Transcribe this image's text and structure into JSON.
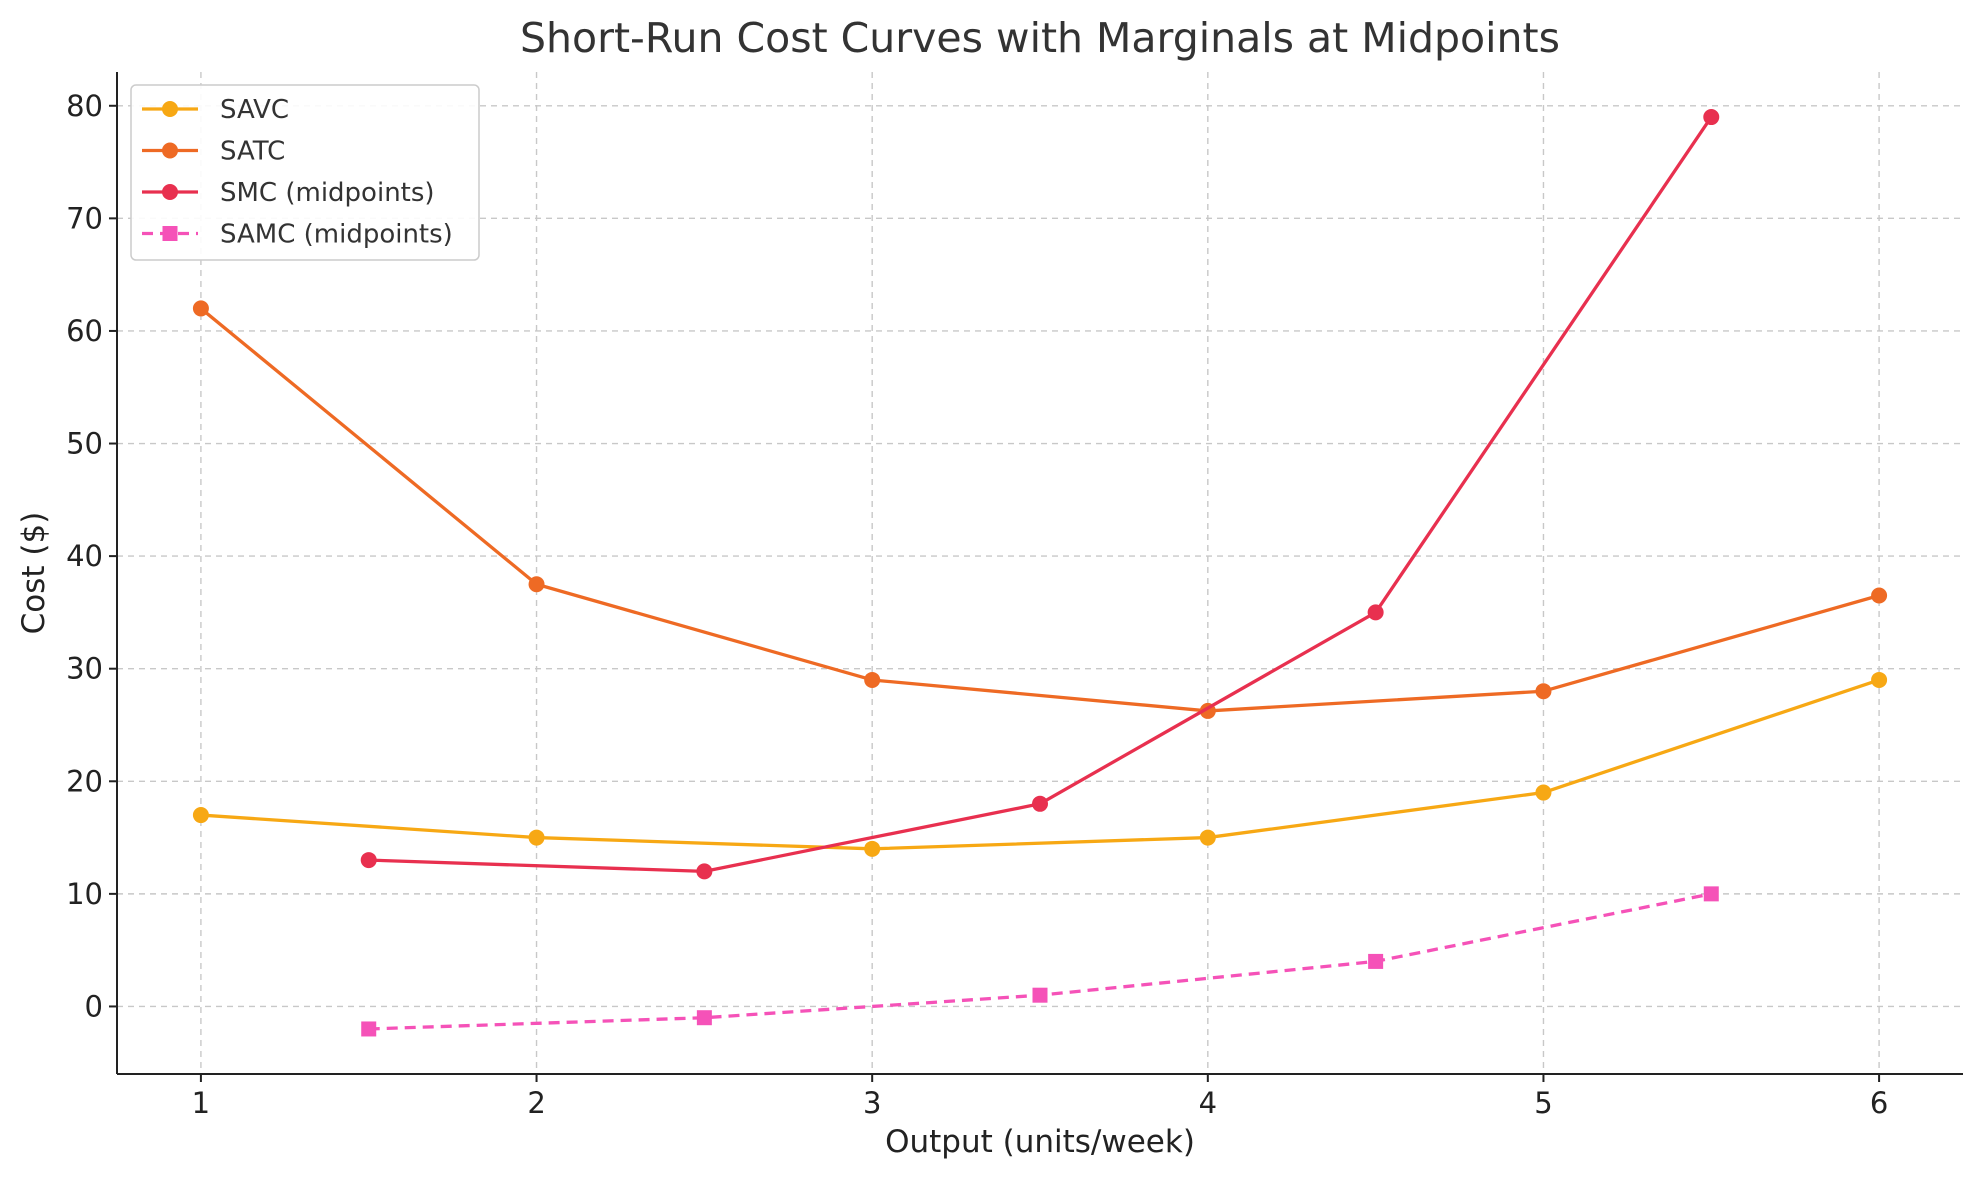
{
  "chart_data": {
    "type": "line",
    "title": "Short-Run Cost Curves with Marginals at Midpoints",
    "xlabel": "Output (units/week)",
    "ylabel": "Cost ($)",
    "xlim": [
      0.75,
      6.25
    ],
    "ylim": [
      -6,
      83
    ],
    "xticks": [
      1,
      2,
      3,
      4,
      5,
      6
    ],
    "yticks": [
      0,
      10,
      20,
      30,
      40,
      50,
      60,
      70,
      80
    ],
    "grid": true,
    "legend_position": "top-left",
    "series": [
      {
        "name": "SAVC",
        "color": "#F7A814",
        "marker": "circle",
        "dash": false,
        "x": [
          1,
          2,
          3,
          4,
          5,
          6
        ],
        "y": [
          17,
          15,
          14,
          15,
          19,
          29
        ]
      },
      {
        "name": "SATC",
        "color": "#EE6A24",
        "marker": "circle",
        "dash": false,
        "x": [
          1,
          2,
          3,
          4,
          5,
          6
        ],
        "y": [
          62,
          37.5,
          29,
          26.25,
          28,
          36.5
        ]
      },
      {
        "name": "SMC (midpoints)",
        "color": "#E8304F",
        "marker": "circle",
        "dash": false,
        "x": [
          1.5,
          2.5,
          3.5,
          4.5,
          5.5
        ],
        "y": [
          13,
          12,
          18,
          35,
          79
        ]
      },
      {
        "name": "SAMC (midpoints)",
        "color": "#F552B8",
        "marker": "square",
        "dash": true,
        "x": [
          1.5,
          2.5,
          3.5,
          4.5,
          5.5
        ],
        "y": [
          -2,
          -1,
          1,
          4,
          10
        ]
      }
    ]
  }
}
